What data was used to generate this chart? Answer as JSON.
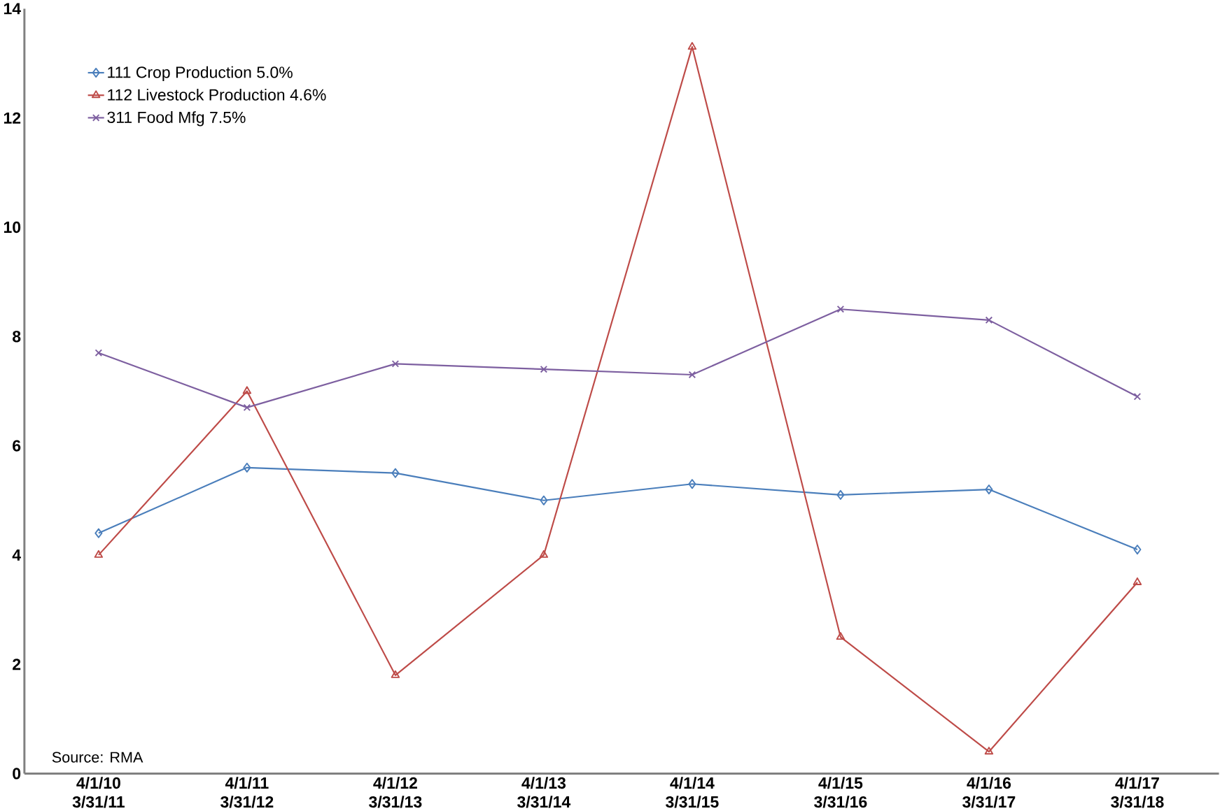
{
  "chart_data": {
    "type": "line",
    "categories": [
      "4/1/10 3/31/11",
      "4/1/11 3/31/12",
      "4/1/12 3/31/13",
      "4/1/13 3/31/14",
      "4/1/14 3/31/15",
      "4/1/15 3/31/16",
      "4/1/16 3/31/17",
      "4/1/17 3/31/18"
    ],
    "series": [
      {
        "name": "111 Crop Production 5.0%",
        "color": "#4a7ebb",
        "marker": "diamond",
        "values": [
          4.4,
          5.6,
          5.5,
          5.0,
          5.3,
          5.1,
          5.2,
          4.1
        ]
      },
      {
        "name": "112 Livestock Production 4.6%",
        "color": "#be4b48",
        "marker": "triangle",
        "values": [
          4.0,
          7.0,
          1.8,
          4.0,
          13.3,
          2.5,
          0.4,
          3.5
        ]
      },
      {
        "name": "311 Food Mfg 7.5%",
        "color": "#7d5fa0",
        "marker": "cross",
        "values": [
          7.7,
          6.7,
          7.5,
          7.4,
          7.3,
          8.5,
          8.3,
          6.9
        ]
      }
    ],
    "ylim": [
      0,
      14
    ],
    "yticks": [
      0,
      2,
      4,
      6,
      8,
      10,
      12,
      14
    ],
    "grid": false,
    "legend": "top left",
    "annotations": [
      "Source: RMA"
    ]
  }
}
